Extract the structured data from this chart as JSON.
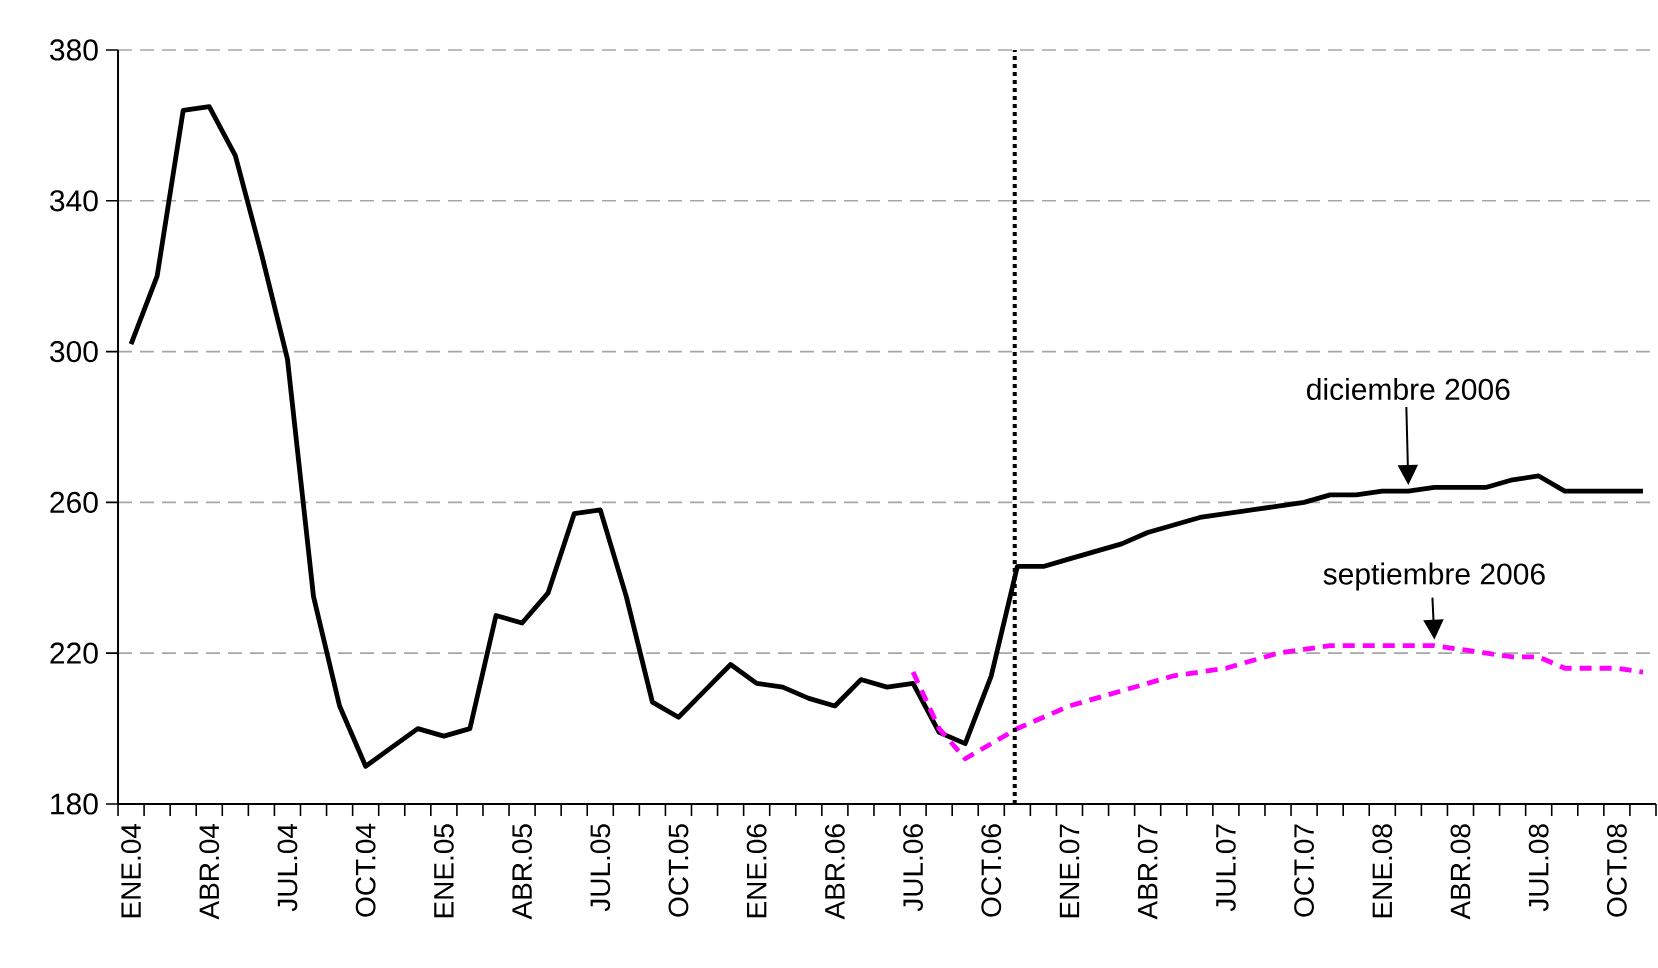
{
  "chart_data": {
    "type": "line",
    "categories": [
      "ENE.04",
      null,
      null,
      "ABR.04",
      null,
      null,
      "JUL.04",
      null,
      null,
      "OCT.04",
      null,
      null,
      "ENE.05",
      null,
      null,
      "ABR.05",
      null,
      null,
      "JUL.05",
      null,
      null,
      "OCT.05",
      null,
      null,
      "ENE.06",
      null,
      null,
      "ABR.06",
      null,
      null,
      "JUL.06",
      null,
      null,
      "OCT.06",
      null,
      null,
      "ENE.07",
      null,
      null,
      "ABR.07",
      null,
      null,
      "JUL.07",
      null,
      null,
      "OCT.07",
      null,
      null,
      "ENE.08",
      null,
      null,
      "ABR.08",
      null,
      null,
      "JUL.08",
      null,
      null,
      "OCT.08",
      null
    ],
    "series": [
      {
        "name": "diciembre 2006",
        "color": "#000000",
        "line_style": "solid",
        "values": [
          302,
          320,
          364,
          365,
          352,
          326,
          298,
          235,
          206,
          190,
          195,
          200,
          198,
          200,
          230,
          228,
          236,
          257,
          258,
          235,
          207,
          203,
          210,
          217,
          212,
          211,
          208,
          206,
          213,
          211,
          212,
          199,
          196,
          214,
          243,
          243,
          245,
          247,
          249,
          252,
          254,
          256,
          257,
          258,
          259,
          260,
          262,
          262,
          263,
          263,
          264,
          264,
          264,
          266,
          267,
          263,
          263,
          263,
          263
        ]
      },
      {
        "name": "septiembre 2006",
        "color": "#ff00ff",
        "line_style": "dashed",
        "values": [
          null,
          null,
          null,
          null,
          null,
          null,
          null,
          null,
          null,
          null,
          null,
          null,
          null,
          null,
          null,
          null,
          null,
          null,
          null,
          null,
          null,
          null,
          null,
          null,
          null,
          null,
          null,
          null,
          null,
          null,
          215,
          200,
          192,
          196,
          200,
          203,
          206,
          208,
          210,
          212,
          214,
          215,
          216,
          218,
          220,
          221,
          222,
          222,
          222,
          222,
          222,
          221,
          220,
          219,
          219,
          216,
          216,
          216,
          215
        ]
      }
    ],
    "ylim": [
      180,
      380
    ],
    "yticks": [
      180,
      220,
      260,
      300,
      340,
      380
    ],
    "grid": "y",
    "legend": false,
    "marker": "none"
  }
}
